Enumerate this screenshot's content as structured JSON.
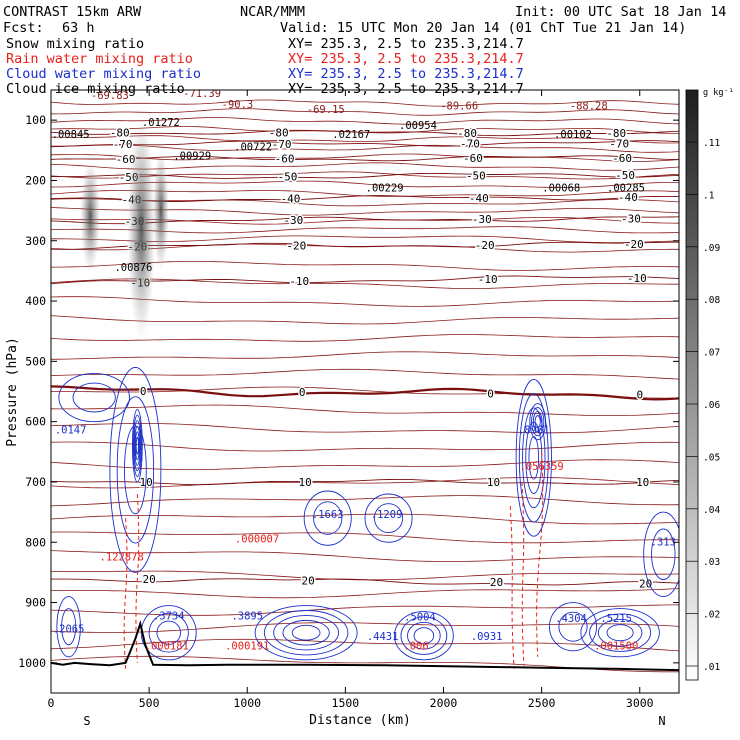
{
  "header": {
    "model": "CONTRAST 15km ARW",
    "org": "NCAR/MMM",
    "init": "Init: 00 UTC Sat 18 Jan 14",
    "fcst_label": "Fcst:",
    "fcst_value": "63 h",
    "valid": "Valid: 15 UTC Mon 20 Jan 14 (01 ChT Tue 21 Jan 14)",
    "fields": [
      {
        "label": "Snow mixing ratio",
        "xy": "",
        "color": "#000000"
      },
      {
        "label": "Rain water mixing ratio",
        "xy": "XY= 235.3,  2.5 to 235.3,214.7",
        "color": "#e8201c"
      },
      {
        "label": "Cloud water mixing ratio",
        "xy": "XY= 235.3,  2.5 to 235.3,214.7",
        "color": "#1a2fcc"
      },
      {
        "label": "Cloud ice mixing ratio",
        "xy": "XY= 235.3,  2.5 to 235.3,214.7",
        "color": "#000000"
      }
    ],
    "xy_snow": "XY= 235.3,  2.5 to 235.3,214.7"
  },
  "chart_data": {
    "type": "contour-cross-section",
    "xlabel": "Distance (km)",
    "ylabel": "Pressure (hPa)",
    "xlim": [
      0,
      3200
    ],
    "ylim": [
      1050,
      50
    ],
    "x_ticks": [
      0,
      500,
      1000,
      1500,
      2000,
      2500,
      3000
    ],
    "y_ticks": [
      100,
      200,
      300,
      400,
      500,
      600,
      700,
      800,
      900,
      1000
    ],
    "x_end_labels": {
      "left": "S",
      "right": "N"
    },
    "colorbar": {
      "unit": "g kg⁻¹",
      "ticks": [
        ".11",
        ".1",
        ".09",
        ".08",
        ".07",
        ".06",
        ".05",
        ".04",
        ".03",
        ".02",
        ".01"
      ]
    },
    "temperature_isotherms": [
      {
        "label": "-80",
        "p_left": 120,
        "p_right": 122
      },
      {
        "label": "-70",
        "p_left": 140,
        "p_right": 138
      },
      {
        "label": "-60",
        "p_left": 165,
        "p_right": 162
      },
      {
        "label": "-50",
        "p_left": 195,
        "p_right": 190
      },
      {
        "label": "-40",
        "p_left": 232,
        "p_right": 227
      },
      {
        "label": "-30",
        "p_left": 268,
        "p_right": 262
      },
      {
        "label": "-20",
        "p_left": 310,
        "p_right": 305
      },
      {
        "label": "-10",
        "p_left": 370,
        "p_right": 360
      },
      {
        "label": "0",
        "p_left": 548,
        "p_right": 556
      },
      {
        "label": "10",
        "p_left": 700,
        "p_right": 700
      },
      {
        "label": "20",
        "p_left": 860,
        "p_right": 870
      }
    ],
    "terrain": [
      {
        "x": 0,
        "p": 1000
      },
      {
        "x": 60,
        "p": 1003
      },
      {
        "x": 120,
        "p": 1000
      },
      {
        "x": 200,
        "p": 1002
      },
      {
        "x": 300,
        "p": 1004
      },
      {
        "x": 380,
        "p": 1000
      },
      {
        "x": 430,
        "p": 960
      },
      {
        "x": 455,
        "p": 935
      },
      {
        "x": 480,
        "p": 970
      },
      {
        "x": 520,
        "p": 1003
      },
      {
        "x": 700,
        "p": 1004
      },
      {
        "x": 900,
        "p": 1003
      },
      {
        "x": 1300,
        "p": 1003
      },
      {
        "x": 1700,
        "p": 1004
      },
      {
        "x": 2100,
        "p": 1006
      },
      {
        "x": 2500,
        "p": 1008
      },
      {
        "x": 2900,
        "p": 1010
      },
      {
        "x": 3200,
        "p": 1012
      }
    ],
    "annotations": [
      {
        "text": "-69.83",
        "x": 300,
        "p": 65,
        "color": "#8b1a1a"
      },
      {
        "text": "-71.39",
        "x": 770,
        "p": 62,
        "color": "#8b1a1a"
      },
      {
        "text": "-90.3",
        "x": 950,
        "p": 80,
        "color": "#8b1a1a"
      },
      {
        "text": "-69.15",
        "x": 1400,
        "p": 88,
        "color": "#8b1a1a"
      },
      {
        "text": "-89.66",
        "x": 2080,
        "p": 82,
        "color": "#8b1a1a"
      },
      {
        "text": "-88.28",
        "x": 2740,
        "p": 82,
        "color": "#8b1a1a"
      },
      {
        "text": ".00845",
        "x": 100,
        "p": 130,
        "color": "#000000"
      },
      {
        "text": ".01272",
        "x": 560,
        "p": 110,
        "color": "#000000"
      },
      {
        "text": ".00929",
        "x": 720,
        "p": 165,
        "color": "#000000"
      },
      {
        "text": ".00722",
        "x": 1030,
        "p": 150,
        "color": "#000000"
      },
      {
        "text": ".02167",
        "x": 1530,
        "p": 130,
        "color": "#000000"
      },
      {
        "text": ".00954",
        "x": 1870,
        "p": 115,
        "color": "#000000"
      },
      {
        "text": ".00102",
        "x": 2660,
        "p": 130,
        "color": "#000000"
      },
      {
        "text": ".00229",
        "x": 1700,
        "p": 218,
        "color": "#000000"
      },
      {
        "text": ".00068",
        "x": 2600,
        "p": 218,
        "color": "#000000"
      },
      {
        "text": ".00285",
        "x": 2930,
        "p": 218,
        "color": "#000000"
      },
      {
        "text": ".00876",
        "x": 420,
        "p": 350,
        "color": "#000000"
      },
      {
        "text": ".0147",
        "x": 100,
        "p": 620,
        "color": "#1a2fcc"
      },
      {
        "text": ".8961",
        "x": 2460,
        "p": 620,
        "color": "#1a2fcc"
      },
      {
        "text": ".1663",
        "x": 1410,
        "p": 760,
        "color": "#1a2fcc"
      },
      {
        "text": ".1209",
        "x": 1710,
        "p": 760,
        "color": "#1a2fcc"
      },
      {
        "text": ".2065",
        "x": 90,
        "p": 950,
        "color": "#1a2fcc"
      },
      {
        "text": ".3734",
        "x": 600,
        "p": 928,
        "color": "#1a2fcc"
      },
      {
        "text": ".3895",
        "x": 1000,
        "p": 928,
        "color": "#1a2fcc"
      },
      {
        "text": ".4431",
        "x": 1690,
        "p": 962,
        "color": "#1a2fcc"
      },
      {
        "text": ".5004",
        "x": 1880,
        "p": 930,
        "color": "#1a2fcc"
      },
      {
        "text": ".0931",
        "x": 2220,
        "p": 962,
        "color": "#1a2fcc"
      },
      {
        "text": ".4304",
        "x": 2650,
        "p": 932,
        "color": "#1a2fcc"
      },
      {
        "text": ".5215",
        "x": 2880,
        "p": 932,
        "color": "#1a2fcc"
      },
      {
        "text": ".313",
        "x": 3120,
        "p": 805,
        "color": "#1a2fcc"
      },
      {
        "text": ".122878",
        "x": 360,
        "p": 830,
        "color": "#e8201c"
      },
      {
        "text": ".000007",
        "x": 1050,
        "p": 800,
        "color": "#e8201c"
      },
      {
        "text": ".000181",
        "x": 590,
        "p": 978,
        "color": "#e8201c"
      },
      {
        "text": ".000191",
        "x": 1000,
        "p": 978,
        "color": "#e8201c"
      },
      {
        "text": ".006",
        "x": 1860,
        "p": 978,
        "color": "#e8201c"
      },
      {
        "text": ".001500",
        "x": 2880,
        "p": 978,
        "color": "#e8201c"
      },
      {
        "text": ".056359",
        "x": 2500,
        "p": 680,
        "color": "#e8201c"
      }
    ]
  }
}
